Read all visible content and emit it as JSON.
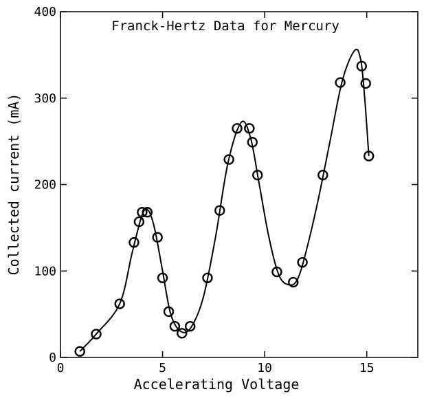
{
  "chart_data": {
    "type": "scatter",
    "title": "Franck-Hertz Data for Mercury",
    "xlabel": "Accelerating Voltage",
    "ylabel": "Collected current (mA)",
    "xlim": [
      0,
      17.5
    ],
    "ylim": [
      0,
      400
    ],
    "xticks": [
      0,
      5,
      10,
      15
    ],
    "yticks": [
      0,
      100,
      200,
      300,
      400
    ],
    "grid": false,
    "series": [
      {
        "style": "points",
        "marker": "open-circle",
        "x": [
          0.95,
          1.75,
          2.9,
          3.6,
          3.85,
          4.0,
          4.25,
          4.75,
          5.0,
          5.3,
          5.6,
          5.95,
          6.35,
          7.2,
          7.8,
          8.25,
          8.65,
          9.25,
          9.4,
          9.65,
          10.6,
          11.4,
          11.85,
          12.85,
          13.7,
          14.75,
          14.95,
          15.1
        ],
        "y": [
          7,
          27,
          62,
          133,
          157,
          168,
          168,
          139,
          92,
          53,
          36,
          28,
          36,
          92,
          170,
          229,
          265,
          265,
          249,
          211,
          99,
          87,
          110,
          211,
          318,
          337,
          317,
          233
        ]
      },
      {
        "style": "line",
        "marker": "none",
        "x": [
          0.95,
          1.75,
          2.9,
          3.5,
          4.0,
          4.3,
          4.6,
          5.0,
          5.4,
          5.9,
          6.4,
          7.0,
          7.6,
          8.2,
          8.85,
          9.3,
          9.7,
          10.2,
          10.7,
          11.2,
          11.6,
          12.0,
          12.6,
          13.2,
          13.8,
          14.4,
          14.7,
          14.9,
          15.1
        ],
        "y": [
          7,
          27,
          62,
          120,
          165,
          170,
          150,
          100,
          50,
          30,
          35,
          70,
          140,
          225,
          272,
          255,
          205,
          140,
          95,
          84,
          90,
          120,
          180,
          250,
          320,
          355,
          345,
          300,
          233
        ]
      }
    ]
  }
}
